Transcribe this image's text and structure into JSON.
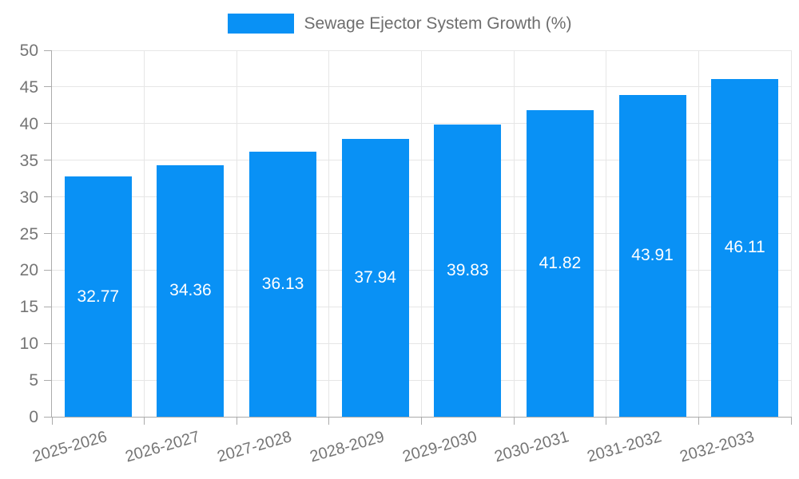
{
  "legend": {
    "label": "Sewage Ejector System Growth (%)",
    "swatch_color": "#0991f5"
  },
  "chart_data": {
    "type": "bar",
    "title": "Sewage Ejector System Growth (%)",
    "categories": [
      "2025-2026",
      "2026-2027",
      "2027-2028",
      "2028-2029",
      "2029-2030",
      "2030-2031",
      "2031-2032",
      "2032-2033"
    ],
    "series": [
      {
        "name": "Sewage Ejector System Growth (%)",
        "values": [
          32.77,
          34.36,
          36.13,
          37.94,
          39.83,
          41.82,
          43.91,
          46.11
        ],
        "value_labels": [
          "32.77",
          "34.36",
          "36.13",
          "37.94",
          "39.83",
          "41.82",
          "43.91",
          "46.11"
        ]
      }
    ],
    "xlabel": "",
    "ylabel": "",
    "ylim": [
      0,
      50
    ],
    "ytick_step": 5,
    "ytick_labels": [
      "0",
      "5",
      "10",
      "15",
      "20",
      "25",
      "30",
      "35",
      "40",
      "45",
      "50"
    ],
    "grid": true,
    "legend_position": "top",
    "colors": {
      "bar": "#0991f5",
      "bar_value_text": "#ffffff",
      "axis_text": "#757575",
      "gridline": "#e6e6e6",
      "axis_line": "#ababab"
    }
  }
}
